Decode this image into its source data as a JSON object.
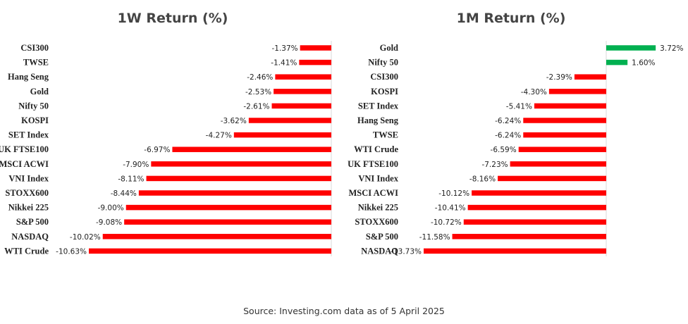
{
  "source_note": "Source: Investing.com data as of  5 April 2025",
  "colors": {
    "negative": "#ff0000",
    "positive": "#00b050",
    "axis": "#d9d9d9"
  },
  "chart_data": [
    {
      "type": "bar",
      "orientation": "horizontal",
      "title": "1W Return (%)",
      "xlim": [
        -10.63,
        0
      ],
      "categories": [
        "CSI300",
        "TWSE",
        "Hang Seng",
        "Gold",
        "Nifty 50",
        "KOSPI",
        "SET Index",
        "UK FTSE100",
        "MSCI ACWI",
        "VNI Index",
        "STOXX600",
        "Nikkei 225",
        "S&P 500",
        "NASDAQ",
        "WTI Crude"
      ],
      "values": [
        -1.37,
        -1.41,
        -2.46,
        -2.53,
        -2.61,
        -3.62,
        -4.27,
        -6.97,
        -7.9,
        -8.11,
        -8.44,
        -9.0,
        -9.08,
        -10.02,
        -10.63
      ],
      "value_labels": [
        "-1.37%",
        "-1.41%",
        "-2.46%",
        "-2.53%",
        "-2.61%",
        "-3.62%",
        "-4.27%",
        "-6.97%",
        "-7.90%",
        "-8.11%",
        "-8.44%",
        "-9.00%",
        "-9.08%",
        "-10.02%",
        "-10.63%"
      ],
      "grid": false,
      "legend": "none"
    },
    {
      "type": "bar",
      "orientation": "horizontal",
      "title": "1M Return (%)",
      "xlim": [
        -13.73,
        3.72
      ],
      "categories": [
        "Gold",
        "Nifty 50",
        "CSI300",
        "KOSPI",
        "SET Index",
        "Hang Seng",
        "TWSE",
        "WTI Crude",
        "UK FTSE100",
        "VNI Index",
        "MSCI ACWI",
        "Nikkei 225",
        "STOXX600",
        "S&P 500",
        "NASDAQ"
      ],
      "values": [
        3.72,
        1.6,
        -2.39,
        -4.3,
        -5.41,
        -6.24,
        -6.24,
        -6.59,
        -7.23,
        -8.16,
        -10.12,
        -10.41,
        -10.72,
        -11.58,
        -13.73
      ],
      "value_labels": [
        "3.72%",
        "1.60%",
        "-2.39%",
        "-4.30%",
        "-5.41%",
        "-6.24%",
        "-6.24%",
        "-6.59%",
        "-7.23%",
        "-8.16%",
        "-10.12%",
        "-10.41%",
        "-10.72%",
        "-11.58%",
        "-13.73%"
      ],
      "grid": false,
      "legend": "none"
    }
  ]
}
